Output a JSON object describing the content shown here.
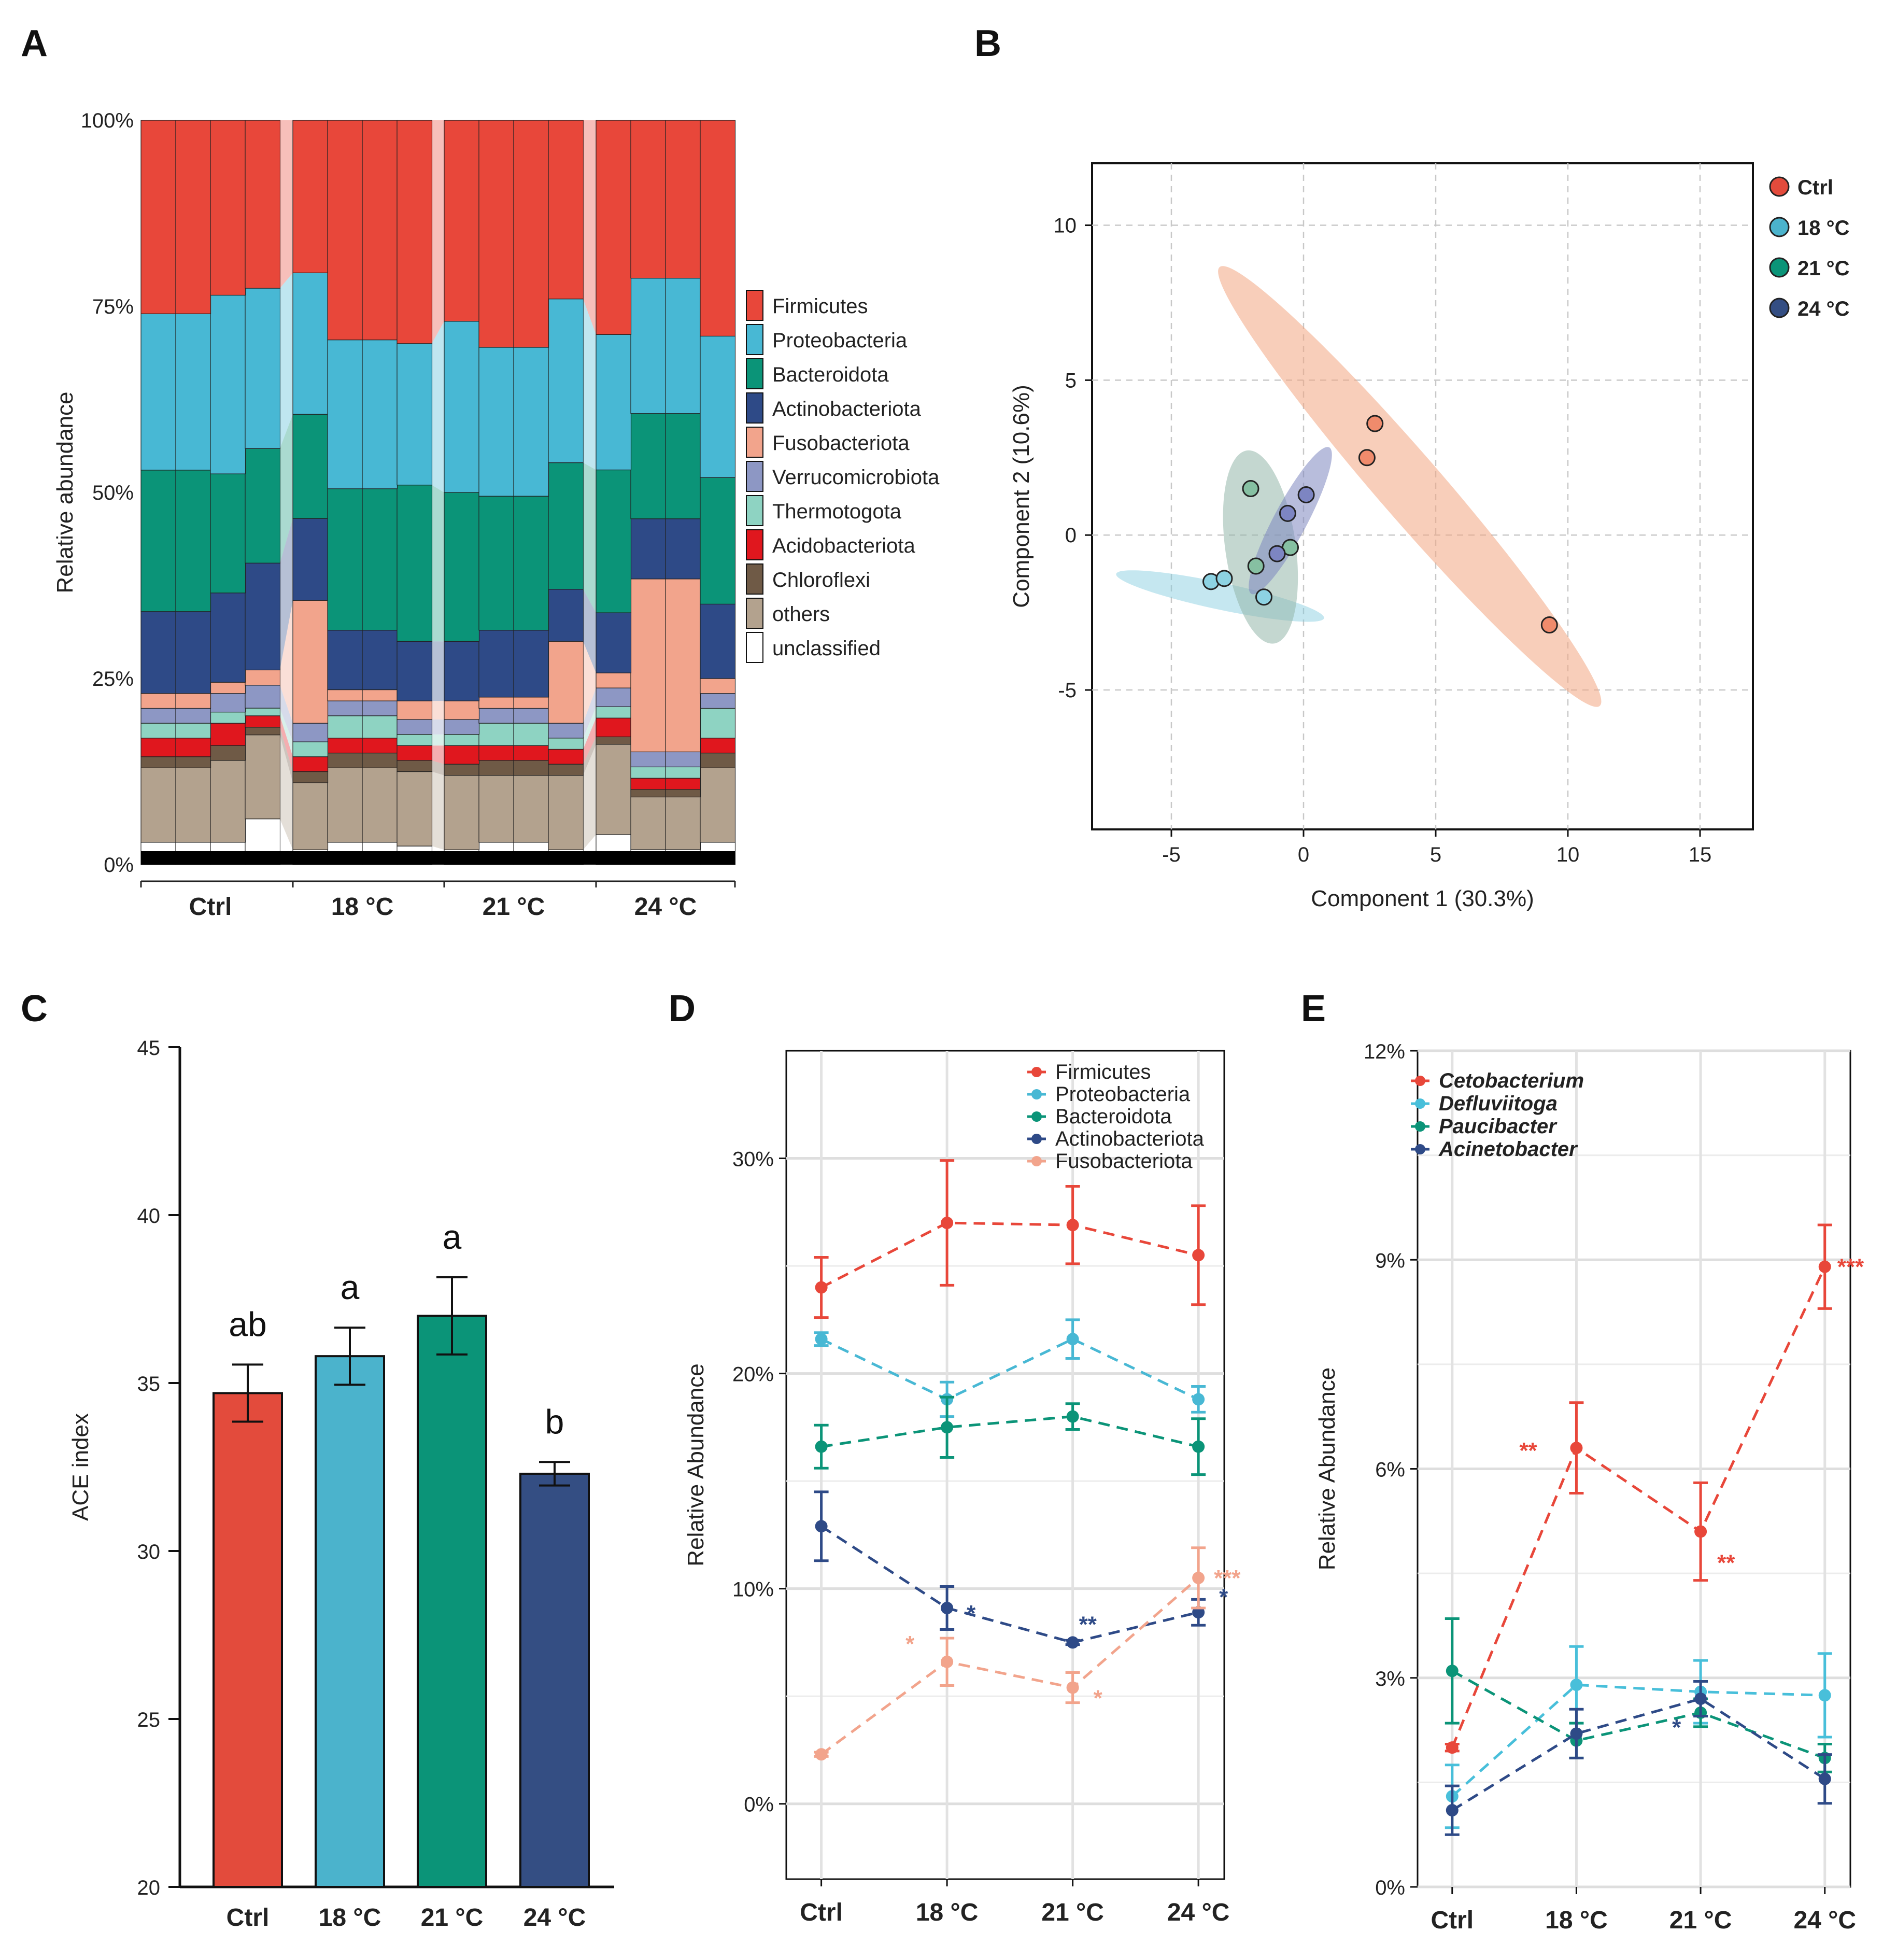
{
  "colors": {
    "Firmicutes": "#E8473A",
    "Proteobacteria": "#48B8D4",
    "Bacteroidota": "#0B9478",
    "Actinobacteriota": "#2E4A87",
    "Fusobacteriota": "#F2A48C",
    "Verrucomicrobiota": "#8D97C4",
    "Thermotogota": "#8ED3C2",
    "Acidobacteriota": "#E0171E",
    "Chloroflexi": "#6F5A46",
    "others": "#B3A28E",
    "unclassified": "#FFFFFF",
    "ctrl": "#E34B3C",
    "c18": "#4BB3CC",
    "c21": "#0B9478",
    "c24": "#344E83",
    "Cetobacterium": "#E8473A",
    "Defluviitoga": "#48BFDA",
    "Paucibacter": "#0B9478",
    "Acinetobacter": "#2E4A87"
  },
  "labels": {
    "A": "A",
    "B": "B",
    "C": "C",
    "D": "D",
    "E": "E"
  },
  "chart_data": [
    {
      "id": "A",
      "type": "stacked-bar",
      "ylabel": "Relative abundance",
      "yticks": [
        "0%",
        "25%",
        "50%",
        "75%",
        "100%"
      ],
      "groups": [
        "Ctrl",
        "18 °C",
        "21 °C",
        "24 °C"
      ],
      "legend": [
        "Firmicutes",
        "Proteobacteria",
        "Bacteroidota",
        "Actinobacteriota",
        "Fusobacteriota",
        "Verrucomicrobiota",
        "Thermotogota",
        "Acidobacteriota",
        "Chloroflexi",
        "others",
        "unclassified"
      ],
      "stack_order": [
        "unclassified",
        "others",
        "Chloroflexi",
        "Acidobacteriota",
        "Thermotogota",
        "Verrucomicrobiota",
        "Fusobacteriota",
        "Actinobacteriota",
        "Bacteroidota",
        "Proteobacteria",
        "Firmicutes"
      ],
      "samples": [
        {
          "group": "Ctrl",
          "values": [
            3,
            10,
            1.5,
            2.5,
            2,
            2,
            2,
            11,
            19,
            21,
            26
          ]
        },
        {
          "group": "Ctrl",
          "values": [
            3,
            10,
            1.5,
            2.5,
            2,
            2,
            2,
            11,
            19,
            21,
            26
          ]
        },
        {
          "group": "Ctrl",
          "values": [
            3,
            11,
            2,
            3,
            1.5,
            2.5,
            1.5,
            12,
            16,
            24,
            23.5
          ]
        },
        {
          "group": "Ctrl",
          "values": [
            6,
            11,
            1,
            1.5,
            1,
            3,
            2,
            14,
            15,
            21,
            22
          ]
        },
        {
          "group": "18 °C",
          "values": [
            2,
            9,
            1.5,
            2,
            2,
            2.5,
            16.5,
            11,
            14,
            19,
            20.5
          ]
        },
        {
          "group": "18 °C",
          "values": [
            3,
            10,
            2,
            2,
            3,
            2,
            1.5,
            8,
            19,
            20,
            29.5
          ]
        },
        {
          "group": "18 °C",
          "values": [
            3,
            10,
            2,
            2,
            3,
            2,
            1.5,
            8,
            19,
            20,
            29.5
          ]
        },
        {
          "group": "18 °C",
          "values": [
            2.5,
            10,
            1.5,
            2,
            1.5,
            2,
            2.5,
            8,
            21,
            19,
            30
          ]
        },
        {
          "group": "21 °C",
          "values": [
            2,
            10,
            1.5,
            2.5,
            1.5,
            2,
            2.5,
            8,
            20,
            23,
            27
          ]
        },
        {
          "group": "21 °C",
          "values": [
            3,
            9,
            2,
            2,
            3,
            2,
            1.5,
            9,
            18,
            20,
            30.5
          ]
        },
        {
          "group": "21 °C",
          "values": [
            3,
            9,
            2,
            2,
            3,
            2,
            1.5,
            9,
            18,
            20,
            30.5
          ]
        },
        {
          "group": "21 °C",
          "values": [
            2,
            10,
            1.5,
            2,
            1.5,
            2,
            11,
            7,
            17,
            22,
            24
          ]
        },
        {
          "group": "24 °C",
          "values": [
            4,
            12,
            1,
            2.5,
            1.5,
            2.5,
            2,
            8,
            19,
            18,
            28.5
          ]
        },
        {
          "group": "24 °C",
          "values": [
            2,
            7,
            1,
            1.5,
            1.5,
            2,
            23,
            8,
            14,
            18,
            21
          ]
        },
        {
          "group": "24 °C",
          "values": [
            2,
            7,
            1,
            1.5,
            1.5,
            2,
            23,
            8,
            14,
            18,
            21
          ]
        },
        {
          "group": "24 °C",
          "values": [
            3,
            10,
            2,
            2,
            4,
            2,
            2,
            10,
            17,
            19,
            29
          ]
        }
      ]
    },
    {
      "id": "B",
      "type": "scatter",
      "xlabel": "Component  1  (30.3%)",
      "ylabel": "Component  2  (10.6%)",
      "xlim": [
        -8,
        17
      ],
      "ylim": [
        -9.5,
        12
      ],
      "xticks": [
        -5,
        0,
        5,
        10,
        15
      ],
      "yticks": [
        -5,
        0,
        5,
        10
      ],
      "series": [
        {
          "name": "Ctrl",
          "points": [
            [
              2.7,
              3.6
            ],
            [
              2.4,
              2.5
            ],
            [
              9.3,
              -2.9
            ]
          ]
        },
        {
          "name": "18 °C",
          "points": [
            [
              -3.5,
              -1.5
            ],
            [
              -3.0,
              -1.4
            ],
            [
              -1.5,
              -2.0
            ]
          ]
        },
        {
          "name": "21 °C",
          "points": [
            [
              -2.0,
              1.5
            ],
            [
              -1.8,
              -1.0
            ],
            [
              -0.5,
              -0.4
            ]
          ]
        },
        {
          "name": "24 °C",
          "points": [
            [
              -0.6,
              0.7
            ],
            [
              -1.0,
              -0.6
            ],
            [
              0.1,
              1.3
            ]
          ]
        }
      ],
      "legend": [
        "Ctrl",
        "18 °C",
        "21 °C",
        "24 °C"
      ]
    },
    {
      "id": "C",
      "type": "bar",
      "ylabel": "ACE index",
      "ylim": [
        20,
        45
      ],
      "yticks": [
        "20",
        "25",
        "30",
        "35",
        "40",
        "45"
      ],
      "categories": [
        "Ctrl",
        "18 °C",
        "21 °C",
        "24 °C"
      ],
      "values": [
        34.7,
        35.8,
        37.0,
        32.3
      ],
      "errors": [
        0.85,
        0.85,
        1.15,
        0.35
      ],
      "letters": [
        "ab",
        "a",
        "a",
        "b"
      ]
    },
    {
      "id": "D",
      "type": "line",
      "ylabel": "Relative Abundance",
      "ylim": [
        -3.5,
        35
      ],
      "yticks": [
        "0%",
        "10%",
        "20%",
        "30%"
      ],
      "categories": [
        "Ctrl",
        "18 °C",
        "21 °C",
        "24 °C"
      ],
      "series": [
        {
          "name": "Firmicutes",
          "values": [
            24.0,
            27.0,
            26.9,
            25.5
          ],
          "errors": [
            1.4,
            2.9,
            1.8,
            2.3
          ]
        },
        {
          "name": "Proteobacteria",
          "values": [
            21.6,
            18.8,
            21.6,
            18.8
          ],
          "errors": [
            0.3,
            0.8,
            0.9,
            0.6
          ]
        },
        {
          "name": "Bacteroidota",
          "values": [
            16.6,
            17.5,
            18.0,
            16.6
          ],
          "errors": [
            1.0,
            1.4,
            0.6,
            1.3
          ]
        },
        {
          "name": "Actinobacteriota",
          "values": [
            12.9,
            9.1,
            7.5,
            8.9
          ],
          "errors": [
            1.6,
            1.0,
            0.1,
            0.6
          ]
        },
        {
          "name": "Fusobacteriota",
          "values": [
            2.3,
            6.6,
            5.4,
            10.5
          ],
          "errors": [
            0.1,
            1.1,
            0.7,
            1.4
          ]
        }
      ],
      "annotations": [
        {
          "series": "Actinobacteriota",
          "category": "18 °C",
          "text": "*"
        },
        {
          "series": "Actinobacteriota",
          "category": "21 °C",
          "text": "**"
        },
        {
          "series": "Actinobacteriota",
          "category": "24 °C",
          "text": "*"
        },
        {
          "series": "Fusobacteriota",
          "category": "18 °C",
          "text": "*"
        },
        {
          "series": "Fusobacteriota",
          "category": "21 °C",
          "text": "*"
        },
        {
          "series": "Fusobacteriota",
          "category": "24 °C",
          "text": "***"
        }
      ]
    },
    {
      "id": "E",
      "type": "line",
      "ylabel": "Relative Abundance",
      "ylim": [
        0,
        12
      ],
      "yticks": [
        "0%",
        "3%",
        "6%",
        "9%",
        "12%"
      ],
      "categories": [
        "Ctrl",
        "18 °C",
        "21 °C",
        "24 °C"
      ],
      "series": [
        {
          "name": "Cetobacterium",
          "values": [
            2.0,
            6.3,
            5.1,
            8.9
          ],
          "errors": [
            0.05,
            0.65,
            0.7,
            0.6
          ]
        },
        {
          "name": "Defluviitoga",
          "values": [
            1.3,
            2.9,
            2.8,
            2.75
          ],
          "errors": [
            0.45,
            0.55,
            0.45,
            0.6
          ]
        },
        {
          "name": "Paucibacter",
          "values": [
            3.1,
            2.1,
            2.5,
            1.85
          ],
          "errors": [
            0.75,
            0.25,
            0.2,
            0.2
          ]
        },
        {
          "name": "Acinetobacter",
          "values": [
            1.1,
            2.2,
            2.7,
            1.55
          ],
          "errors": [
            0.35,
            0.35,
            0.25,
            0.35
          ]
        }
      ],
      "annotations": [
        {
          "series": "Cetobacterium",
          "category": "18 °C",
          "text": "**"
        },
        {
          "series": "Cetobacterium",
          "category": "21 °C",
          "text": "**"
        },
        {
          "series": "Cetobacterium",
          "category": "24 °C",
          "text": "***"
        },
        {
          "series": "Acinetobacter",
          "category": "21 °C",
          "text": "*"
        }
      ]
    }
  ]
}
